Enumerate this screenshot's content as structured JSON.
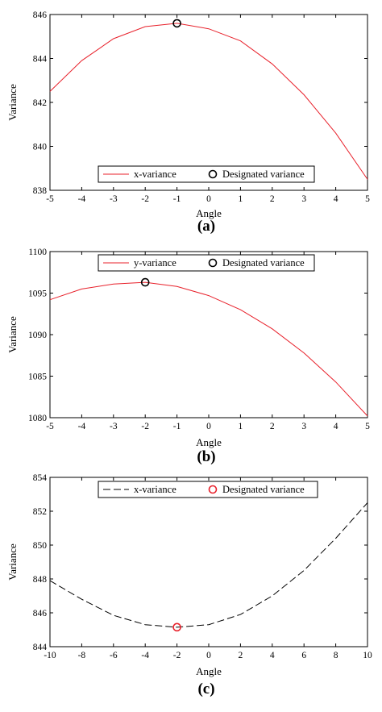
{
  "chart_data": [
    {
      "type": "line",
      "panel_label": "(a)",
      "xlabel": "Angle",
      "ylabel": "Variance",
      "xlim": [
        -5,
        5
      ],
      "ylim": [
        838,
        846
      ],
      "xticks": [
        "-5",
        "-4",
        "-3",
        "-2",
        "-1",
        "0",
        "1",
        "2",
        "3",
        "4",
        "5"
      ],
      "yticks": [
        "838",
        "840",
        "842",
        "844",
        "846"
      ],
      "legend_position": "bottom-right",
      "series": [
        {
          "name": "x-variance",
          "style": "solid",
          "color": "#e8212b",
          "x": [
            -5,
            -4,
            -3,
            -2,
            -1,
            0,
            1,
            2,
            3,
            4,
            5
          ],
          "y": [
            842.5,
            843.9,
            844.9,
            845.45,
            845.6,
            845.35,
            844.8,
            843.75,
            842.35,
            840.6,
            838.5
          ]
        }
      ],
      "marker": {
        "name": "Designated variance",
        "x": -1,
        "y": 845.6,
        "color": "#000000"
      }
    },
    {
      "type": "line",
      "panel_label": "(b)",
      "xlabel": "Angle",
      "ylabel": "Variance",
      "xlim": [
        -5,
        5
      ],
      "ylim": [
        1080,
        1100
      ],
      "xticks": [
        "-5",
        "-4",
        "-3",
        "-2",
        "-1",
        "0",
        "1",
        "2",
        "3",
        "4",
        "5"
      ],
      "yticks": [
        "1080",
        "1085",
        "1090",
        "1095",
        "1100"
      ],
      "legend_position": "top",
      "series": [
        {
          "name": "y-variance",
          "style": "solid",
          "color": "#e8212b",
          "x": [
            -5,
            -4,
            -3,
            -2,
            -1,
            0,
            1,
            2,
            3,
            4,
            5
          ],
          "y": [
            1094.2,
            1095.5,
            1096.1,
            1096.3,
            1095.8,
            1094.7,
            1093.0,
            1090.7,
            1087.8,
            1084.3,
            1080.2
          ]
        }
      ],
      "marker": {
        "name": "Designated variance",
        "x": -2,
        "y": 1096.3,
        "color": "#000000"
      }
    },
    {
      "type": "line",
      "panel_label": "(c)",
      "xlabel": "Angle",
      "ylabel": "Variance",
      "xlim": [
        -10,
        10
      ],
      "ylim": [
        844,
        854
      ],
      "xticks": [
        "-10",
        "-8",
        "-6",
        "-4",
        "-2",
        "0",
        "2",
        "4",
        "6",
        "8",
        "10"
      ],
      "yticks": [
        "844",
        "846",
        "848",
        "850",
        "852",
        "854"
      ],
      "legend_position": "top",
      "series": [
        {
          "name": "x-variance",
          "style": "dashed",
          "color": "#000000",
          "x": [
            -10,
            -8,
            -6,
            -4,
            -2,
            0,
            2,
            4,
            6,
            8,
            10
          ],
          "y": [
            847.9,
            846.8,
            845.85,
            845.3,
            845.15,
            845.3,
            845.9,
            847.0,
            848.5,
            850.4,
            852.5
          ]
        }
      ],
      "marker": {
        "name": "Designated variance",
        "x": -2,
        "y": 845.15,
        "color": "#e8212b"
      }
    }
  ]
}
